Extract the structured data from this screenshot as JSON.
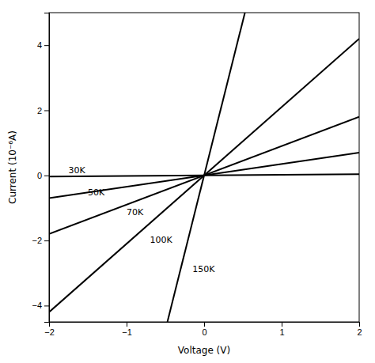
{
  "chart_data": {
    "type": "line",
    "title": "",
    "xlabel": "Voltage (V)",
    "ylabel": "Current (10⁻⁶A)",
    "xlim": [
      -2,
      2
    ],
    "ylim": [
      -4.5,
      5.0
    ],
    "xticks": [
      -2,
      -1,
      0,
      1,
      2
    ],
    "yticks": [
      -4,
      -2,
      0,
      2,
      4
    ],
    "grid": false,
    "series": [
      {
        "color": "black",
        "x": [
          -2,
          2
        ],
        "values": [
          -0.036,
          0.036
        ]
      },
      {
        "color": "black",
        "x": [
          -2,
          2
        ],
        "values": [
          -0.7,
          0.7
        ]
      },
      {
        "color": "black",
        "x": [
          -2,
          2
        ],
        "values": [
          -1.8,
          1.8
        ]
      },
      {
        "color": "black",
        "x": [
          -2,
          2
        ],
        "values": [
          -4.2,
          4.2
        ]
      },
      {
        "color": "black",
        "x": [
          -0.47368421052631576,
          0.5263157894736842
        ],
        "values": [
          -4.5,
          5.0
        ]
      }
    ],
    "annotations": [
      {
        "text": "30K",
        "x": -1.75,
        "y": 0.15
      },
      {
        "text": "50K",
        "x": -1.5,
        "y": -0.55
      },
      {
        "text": "70K",
        "x": -1.0,
        "y": -1.15
      },
      {
        "text": "100K",
        "x": -0.7,
        "y": -2.0
      },
      {
        "text": "150K",
        "x": -0.15,
        "y": -2.9
      }
    ]
  }
}
